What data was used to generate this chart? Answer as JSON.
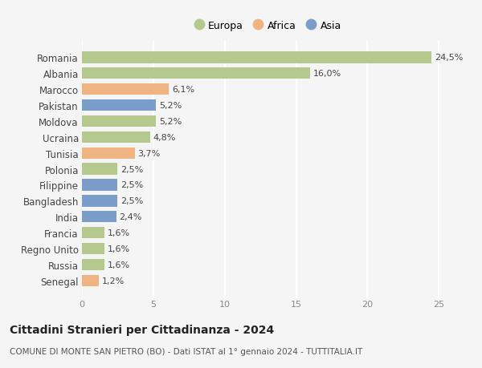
{
  "countries": [
    "Romania",
    "Albania",
    "Marocco",
    "Pakistan",
    "Moldova",
    "Ucraina",
    "Tunisia",
    "Polonia",
    "Filippine",
    "Bangladesh",
    "India",
    "Francia",
    "Regno Unito",
    "Russia",
    "Senegal"
  ],
  "values": [
    24.5,
    16.0,
    6.1,
    5.2,
    5.2,
    4.8,
    3.7,
    2.5,
    2.5,
    2.5,
    2.4,
    1.6,
    1.6,
    1.6,
    1.2
  ],
  "labels": [
    "24,5%",
    "16,0%",
    "6,1%",
    "5,2%",
    "5,2%",
    "4,8%",
    "3,7%",
    "2,5%",
    "2,5%",
    "2,5%",
    "2,4%",
    "1,6%",
    "1,6%",
    "1,6%",
    "1,2%"
  ],
  "continents": [
    "Europa",
    "Europa",
    "Africa",
    "Asia",
    "Europa",
    "Europa",
    "Africa",
    "Europa",
    "Asia",
    "Asia",
    "Asia",
    "Europa",
    "Europa",
    "Europa",
    "Africa"
  ],
  "colors": {
    "Europa": "#b5c98e",
    "Africa": "#f0b482",
    "Asia": "#7b9dc9"
  },
  "xlim": [
    0,
    26
  ],
  "xticks": [
    0,
    5,
    10,
    15,
    20,
    25
  ],
  "title": "Cittadini Stranieri per Cittadinanza - 2024",
  "subtitle": "COMUNE DI MONTE SAN PIETRO (BO) - Dati ISTAT al 1° gennaio 2024 - TUTTITALIA.IT",
  "background_color": "#f5f5f5",
  "grid_color": "#ffffff",
  "bar_height": 0.72,
  "label_fontsize": 8,
  "ytick_fontsize": 8.5,
  "xtick_fontsize": 8
}
